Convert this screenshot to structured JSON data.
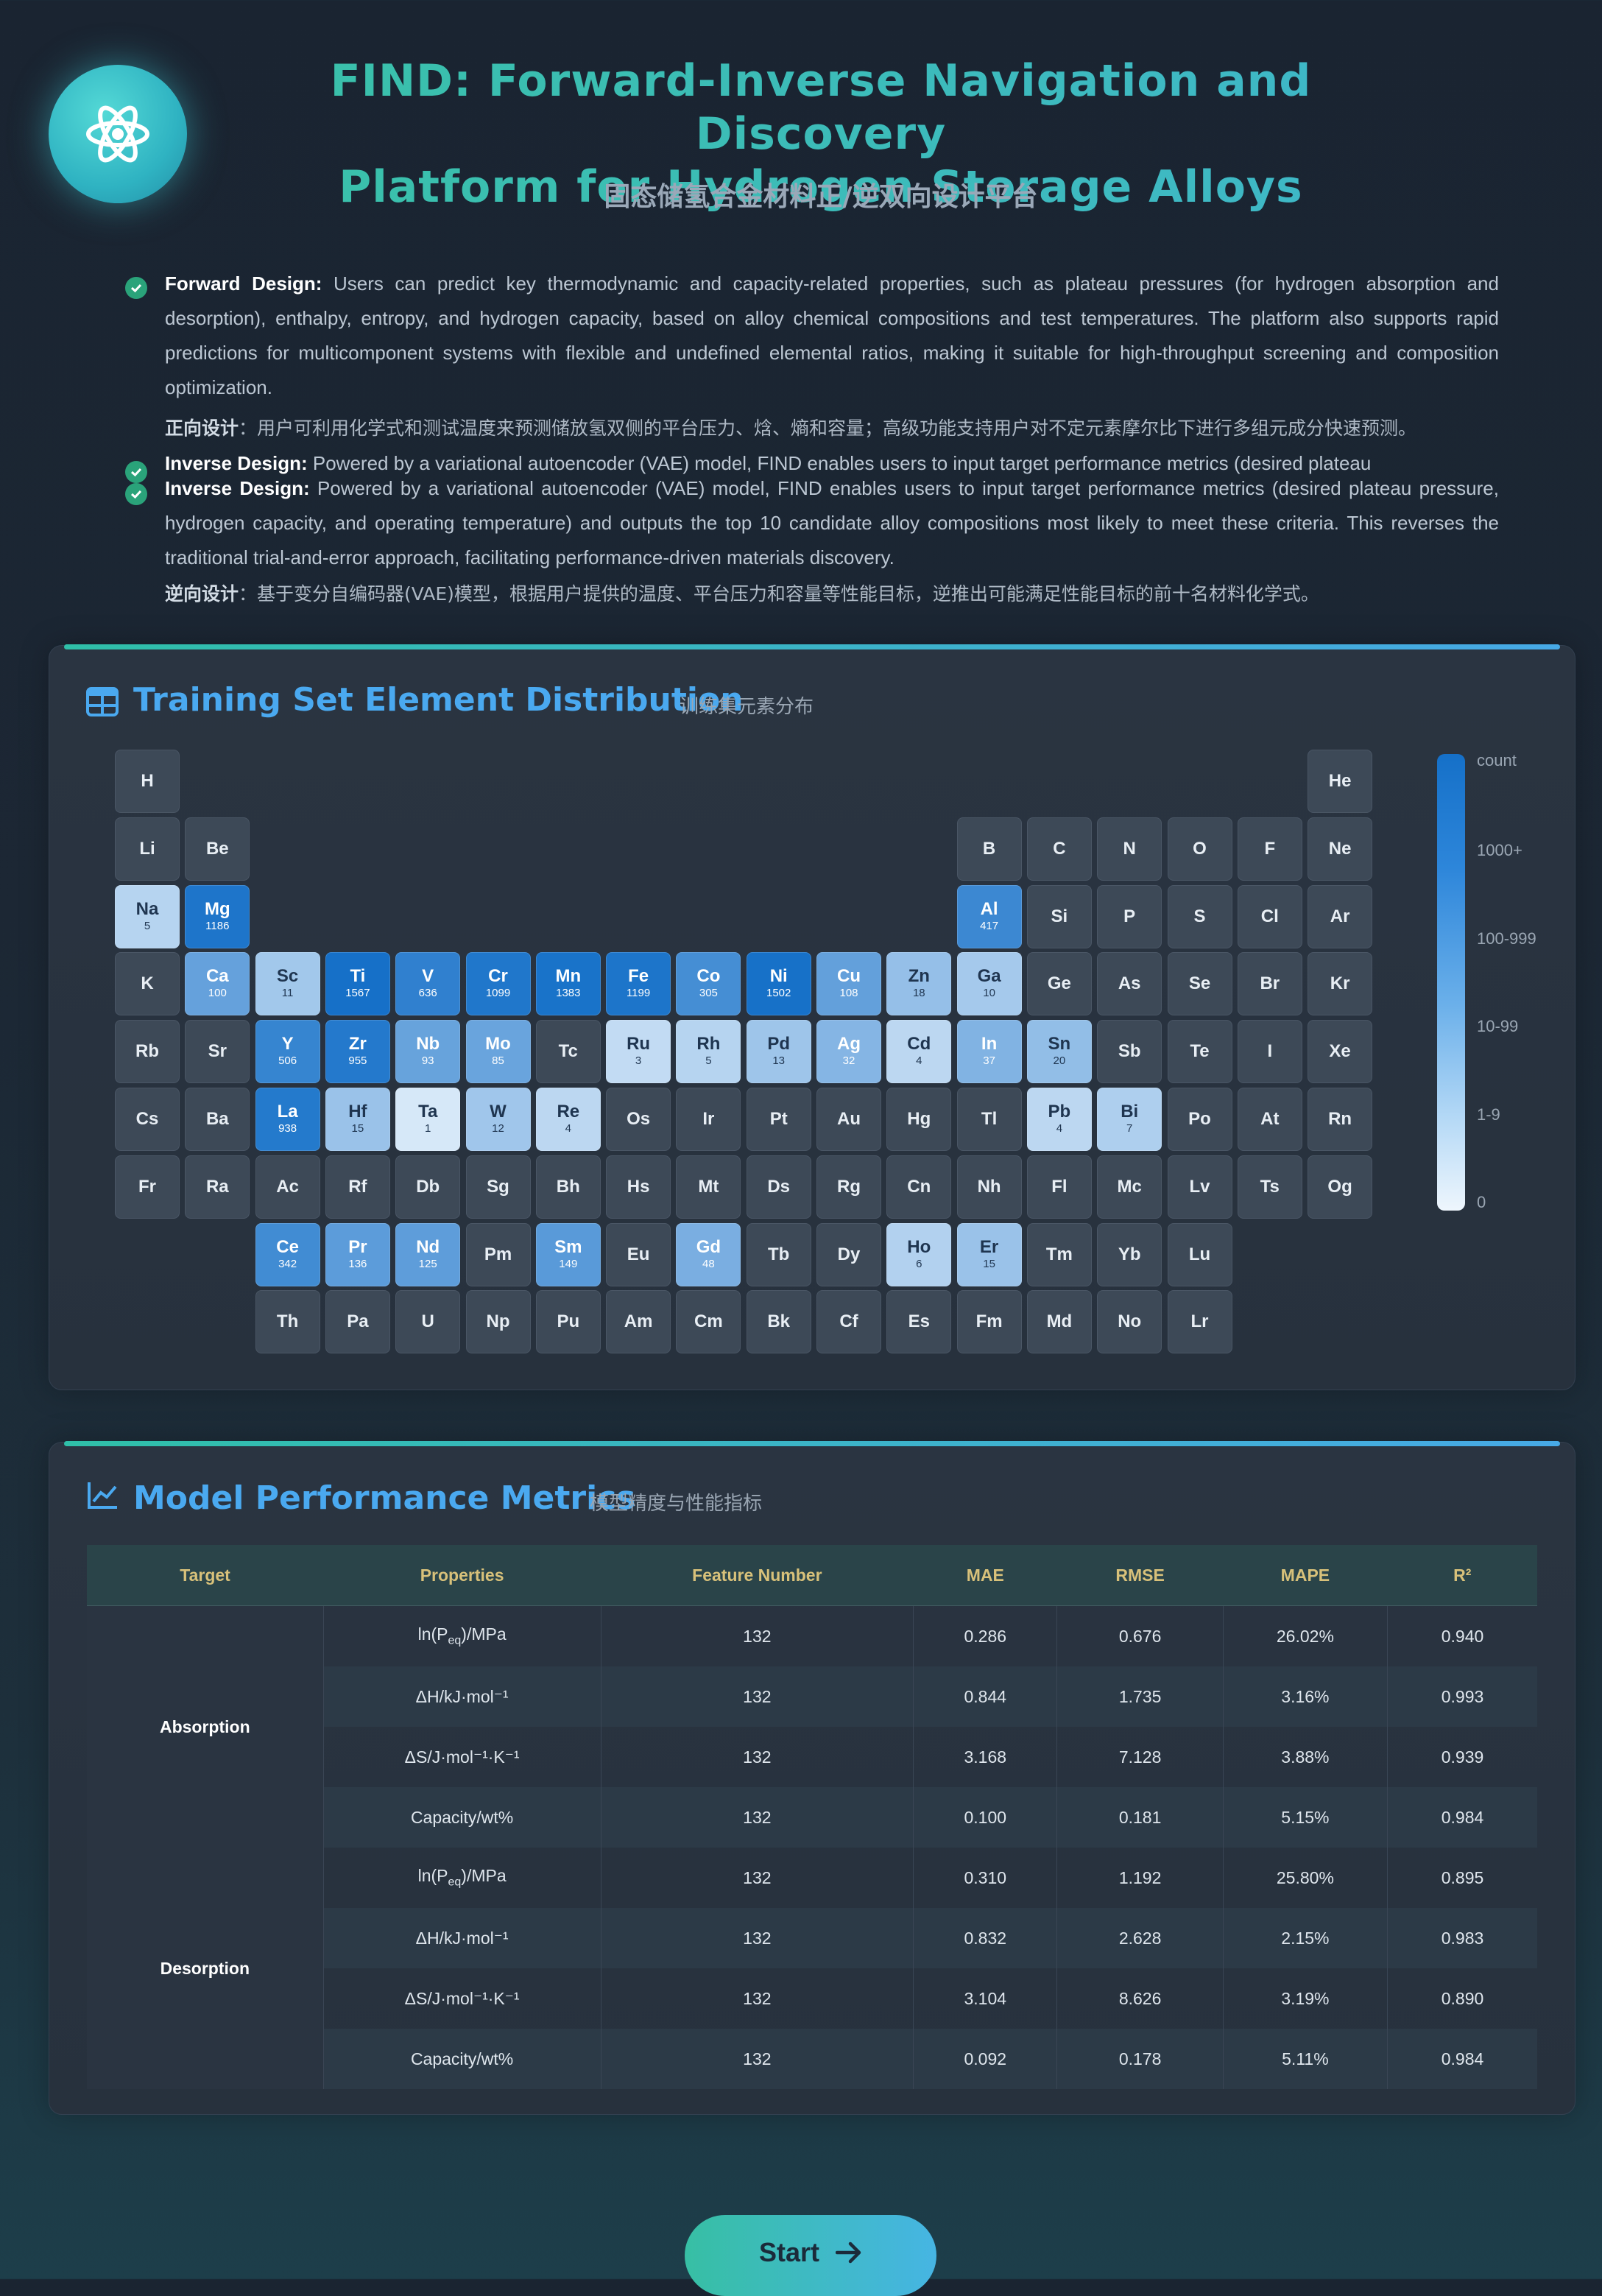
{
  "header": {
    "title_line1": "FIND: Forward-Inverse Navigation and Discovery",
    "title_line2": "Platform for Hydrogen Storage Alloys",
    "subtitle": "固态储氢合金材料正/逆双向设计平台",
    "logo_icon": "atom-icon"
  },
  "description": {
    "forward_label": "Forward Design:",
    "forward_text": "Users can predict key thermodynamic and capacity-related properties, such as plateau pressures (for hydrogen absorption and desorption), enthalpy, entropy, and hydrogen capacity, based on alloy chemical compositions and test temperatures. The platform also supports rapid predictions for multicomponent systems with flexible and undefined elemental ratios, making it suitable for high-throughput screening and composition optimization.",
    "forward_zh_label": "正向设计",
    "forward_zh_text": "：用户可利用化学式和测试温度来预测储放氢双侧的平台压力、焓、熵和容量；高级功能支持用户对不定元素摩尔比下进行多组元成分快速预测。",
    "inverse_label": "Inverse Design:",
    "inverse_text_first": "Powered by a variational autoencoder (VAE) model, FIND enables users to input target performance metrics (desired plateau",
    "inverse_text": "Powered by a variational autoencoder (VAE) model, FIND enables users to input target performance metrics (desired plateau pressure, hydrogen capacity, and operating temperature) and outputs the top 10 candidate alloy compositions most likely to meet these criteria. This reverses the traditional trial-and-error approach, facilitating performance-driven materials discovery.",
    "inverse_zh_label": "逆向设计",
    "inverse_zh_text": "：基于变分自编码器(VAE)模型，根据用户提供的温度、平台压力和容量等性能目标，逆推出可能满足性能目标的前十名材料化学式。"
  },
  "element_panel": {
    "title": "Training Set Element Distribution",
    "subtitle": "训练集元素分布",
    "icon": "table-icon",
    "legend": {
      "title": "count",
      "labels": [
        "1000+",
        "100-999",
        "10-99",
        "1-9",
        "0"
      ]
    },
    "elements": [
      {
        "s": "H",
        "c": null
      },
      {
        "s": "He",
        "c": null
      },
      {
        "s": "Li",
        "c": null
      },
      {
        "s": "Be",
        "c": null
      },
      {
        "s": "B",
        "c": null
      },
      {
        "s": "C",
        "c": null
      },
      {
        "s": "N",
        "c": null
      },
      {
        "s": "O",
        "c": null
      },
      {
        "s": "F",
        "c": null
      },
      {
        "s": "Ne",
        "c": null
      },
      {
        "s": "Na",
        "c": 5
      },
      {
        "s": "Mg",
        "c": 1186
      },
      {
        "s": "Al",
        "c": 417
      },
      {
        "s": "Si",
        "c": null
      },
      {
        "s": "P",
        "c": null
      },
      {
        "s": "S",
        "c": null
      },
      {
        "s": "Cl",
        "c": null
      },
      {
        "s": "Ar",
        "c": null
      },
      {
        "s": "K",
        "c": null
      },
      {
        "s": "Ca",
        "c": 100
      },
      {
        "s": "Sc",
        "c": 11
      },
      {
        "s": "Ti",
        "c": 1567
      },
      {
        "s": "V",
        "c": 636
      },
      {
        "s": "Cr",
        "c": 1099
      },
      {
        "s": "Mn",
        "c": 1383
      },
      {
        "s": "Fe",
        "c": 1199
      },
      {
        "s": "Co",
        "c": 305
      },
      {
        "s": "Ni",
        "c": 1502
      },
      {
        "s": "Cu",
        "c": 108
      },
      {
        "s": "Zn",
        "c": 18
      },
      {
        "s": "Ga",
        "c": 10
      },
      {
        "s": "Ge",
        "c": null
      },
      {
        "s": "As",
        "c": null
      },
      {
        "s": "Se",
        "c": null
      },
      {
        "s": "Br",
        "c": null
      },
      {
        "s": "Kr",
        "c": null
      },
      {
        "s": "Rb",
        "c": null
      },
      {
        "s": "Sr",
        "c": null
      },
      {
        "s": "Y",
        "c": 506
      },
      {
        "s": "Zr",
        "c": 955
      },
      {
        "s": "Nb",
        "c": 93
      },
      {
        "s": "Mo",
        "c": 85
      },
      {
        "s": "Tc",
        "c": null
      },
      {
        "s": "Ru",
        "c": 3
      },
      {
        "s": "Rh",
        "c": 5
      },
      {
        "s": "Pd",
        "c": 13
      },
      {
        "s": "Ag",
        "c": 32
      },
      {
        "s": "Cd",
        "c": 4
      },
      {
        "s": "In",
        "c": 37
      },
      {
        "s": "Sn",
        "c": 20
      },
      {
        "s": "Sb",
        "c": null
      },
      {
        "s": "Te",
        "c": null
      },
      {
        "s": "I",
        "c": null
      },
      {
        "s": "Xe",
        "c": null
      },
      {
        "s": "Cs",
        "c": null
      },
      {
        "s": "Ba",
        "c": null
      },
      {
        "s": "La",
        "c": 938
      },
      {
        "s": "Hf",
        "c": 15
      },
      {
        "s": "Ta",
        "c": 1
      },
      {
        "s": "W",
        "c": 12
      },
      {
        "s": "Re",
        "c": 4
      },
      {
        "s": "Os",
        "c": null
      },
      {
        "s": "Ir",
        "c": null
      },
      {
        "s": "Pt",
        "c": null
      },
      {
        "s": "Au",
        "c": null
      },
      {
        "s": "Hg",
        "c": null
      },
      {
        "s": "Tl",
        "c": null
      },
      {
        "s": "Pb",
        "c": 4
      },
      {
        "s": "Bi",
        "c": 7
      },
      {
        "s": "Po",
        "c": null
      },
      {
        "s": "At",
        "c": null
      },
      {
        "s": "Rn",
        "c": null
      },
      {
        "s": "Fr",
        "c": null
      },
      {
        "s": "Ra",
        "c": null
      },
      {
        "s": "Ac",
        "c": null
      },
      {
        "s": "Rf",
        "c": null
      },
      {
        "s": "Db",
        "c": null
      },
      {
        "s": "Sg",
        "c": null
      },
      {
        "s": "Bh",
        "c": null
      },
      {
        "s": "Hs",
        "c": null
      },
      {
        "s": "Mt",
        "c": null
      },
      {
        "s": "Ds",
        "c": null
      },
      {
        "s": "Rg",
        "c": null
      },
      {
        "s": "Cn",
        "c": null
      },
      {
        "s": "Nh",
        "c": null
      },
      {
        "s": "Fl",
        "c": null
      },
      {
        "s": "Mc",
        "c": null
      },
      {
        "s": "Lv",
        "c": null
      },
      {
        "s": "Ts",
        "c": null
      },
      {
        "s": "Og",
        "c": null
      },
      {
        "s": "Ce",
        "c": 342
      },
      {
        "s": "Pr",
        "c": 136
      },
      {
        "s": "Nd",
        "c": 125
      },
      {
        "s": "Pm",
        "c": null
      },
      {
        "s": "Sm",
        "c": 149
      },
      {
        "s": "Eu",
        "c": null
      },
      {
        "s": "Gd",
        "c": 48
      },
      {
        "s": "Tb",
        "c": null
      },
      {
        "s": "Dy",
        "c": null
      },
      {
        "s": "Ho",
        "c": 6
      },
      {
        "s": "Er",
        "c": 15
      },
      {
        "s": "Tm",
        "c": null
      },
      {
        "s": "Yb",
        "c": null
      },
      {
        "s": "Lu",
        "c": null
      },
      {
        "s": "Th",
        "c": null
      },
      {
        "s": "Pa",
        "c": null
      },
      {
        "s": "U",
        "c": null
      },
      {
        "s": "Np",
        "c": null
      },
      {
        "s": "Pu",
        "c": null
      },
      {
        "s": "Am",
        "c": null
      },
      {
        "s": "Cm",
        "c": null
      },
      {
        "s": "Bk",
        "c": null
      },
      {
        "s": "Cf",
        "c": null
      },
      {
        "s": "Es",
        "c": null
      },
      {
        "s": "Fm",
        "c": null
      },
      {
        "s": "Md",
        "c": null
      },
      {
        "s": "No",
        "c": null
      },
      {
        "s": "Lr",
        "c": null
      }
    ],
    "colors": {
      "empty": "#3d4957",
      "scale_high": "#1570c8",
      "scale_low": "#eef6fd"
    }
  },
  "metrics_panel": {
    "title": "Model Performance Metrics",
    "subtitle": "模型精度与性能指标",
    "icon": "line-chart-icon",
    "columns": [
      "Target",
      "Properties",
      "Feature Number",
      "MAE",
      "RMSE",
      "MAPE",
      "R²"
    ],
    "groups": [
      {
        "target": "Absorption",
        "rows": [
          {
            "prop": "ln(P",
            "sub": "eq",
            "unit": ")/MPa",
            "feat": "132",
            "mae": "0.286",
            "rmse": "0.676",
            "mape": "26.02%",
            "r2": "0.940"
          },
          {
            "prop": "ΔH/kJ·mol⁻¹",
            "sub": "",
            "unit": "",
            "feat": "132",
            "mae": "0.844",
            "rmse": "1.735",
            "mape": "3.16%",
            "r2": "0.993"
          },
          {
            "prop": "ΔS/J·mol⁻¹·K⁻¹",
            "sub": "",
            "unit": "",
            "feat": "132",
            "mae": "3.168",
            "rmse": "7.128",
            "mape": "3.88%",
            "r2": "0.939"
          },
          {
            "prop": "Capacity/wt%",
            "sub": "",
            "unit": "",
            "feat": "132",
            "mae": "0.100",
            "rmse": "0.181",
            "mape": "5.15%",
            "r2": "0.984"
          }
        ]
      },
      {
        "target": "Desorption",
        "rows": [
          {
            "prop": "ln(P",
            "sub": "eq",
            "unit": ")/MPa",
            "feat": "132",
            "mae": "0.310",
            "rmse": "1.192",
            "mape": "25.80%",
            "r2": "0.895"
          },
          {
            "prop": "ΔH/kJ·mol⁻¹",
            "sub": "",
            "unit": "",
            "feat": "132",
            "mae": "0.832",
            "rmse": "2.628",
            "mape": "2.15%",
            "r2": "0.983"
          },
          {
            "prop": "ΔS/J·mol⁻¹·K⁻¹",
            "sub": "",
            "unit": "",
            "feat": "132",
            "mae": "3.104",
            "rmse": "8.626",
            "mape": "3.19%",
            "r2": "0.890"
          },
          {
            "prop": "Capacity/wt%",
            "sub": "",
            "unit": "",
            "feat": "132",
            "mae": "0.092",
            "rmse": "0.178",
            "mape": "5.11%",
            "r2": "0.984"
          }
        ]
      }
    ]
  },
  "actions": {
    "start_label": "Start",
    "start_icon": "arrow-right-icon"
  }
}
